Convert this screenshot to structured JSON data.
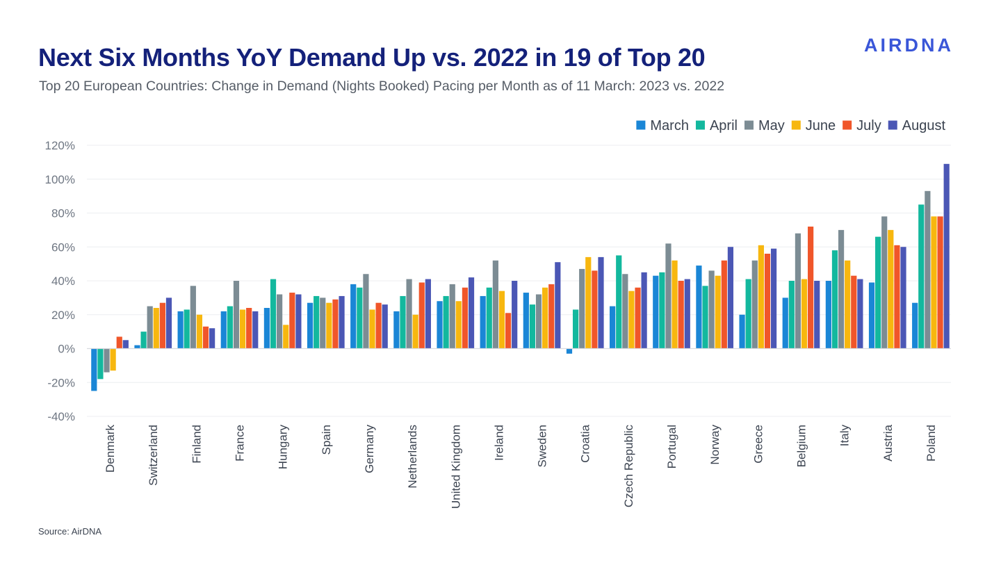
{
  "header": {
    "title": "Next Six Months YoY Demand Up vs. 2022 in 19 of Top 20",
    "subtitle": "Top 20 European Countries: Change in Demand (Nights Booked) Pacing per Month as of 11 March: 2023 vs. 2022",
    "logo_text": "AIRDNA"
  },
  "footer": {
    "source": "Source: AirDNA"
  },
  "chart_data": {
    "type": "bar",
    "title": "Top 20 European Countries: Change in Demand (Nights Booked) Pacing per Month as of 11 March: 2023 vs. 2022",
    "xlabel": "",
    "ylabel": "",
    "ylim": [
      -40,
      120
    ],
    "yticks": [
      -40,
      -20,
      0,
      20,
      40,
      60,
      80,
      100,
      120
    ],
    "ytick_labels": [
      "-40%",
      "-20%",
      "0%",
      "20%",
      "40%",
      "60%",
      "80%",
      "100%",
      "120%"
    ],
    "grid": true,
    "legend_position": "top-right",
    "categories": [
      "Denmark",
      "Switzerland",
      "Finland",
      "France",
      "Hungary",
      "Spain",
      "Germany",
      "Netherlands",
      "United Kingdom",
      "Ireland",
      "Sweden",
      "Croatia",
      "Czech Republic",
      "Portugal",
      "Norway",
      "Greece",
      "Belgium",
      "Italy",
      "Austria",
      "Poland"
    ],
    "series": [
      {
        "name": "March",
        "color": "#1a86d6",
        "values": [
          -25,
          2,
          22,
          22,
          24,
          27,
          38,
          22,
          28,
          31,
          33,
          -3,
          25,
          43,
          49,
          20,
          30,
          40,
          39,
          27
        ]
      },
      {
        "name": "April",
        "color": "#13b89e",
        "values": [
          -18,
          10,
          23,
          25,
          41,
          31,
          36,
          31,
          31,
          36,
          26,
          23,
          55,
          45,
          37,
          41,
          40,
          58,
          66,
          85
        ]
      },
      {
        "name": "May",
        "color": "#7c8c94",
        "values": [
          -14,
          25,
          37,
          40,
          32,
          30,
          44,
          41,
          38,
          52,
          32,
          47,
          44,
          62,
          46,
          52,
          68,
          70,
          78,
          93
        ]
      },
      {
        "name": "June",
        "color": "#f7b70f",
        "values": [
          -13,
          24,
          20,
          23,
          14,
          27,
          23,
          20,
          28,
          34,
          36,
          54,
          34,
          52,
          43,
          61,
          41,
          52,
          70,
          78
        ]
      },
      {
        "name": "July",
        "color": "#f0562a",
        "values": [
          7,
          27,
          13,
          24,
          33,
          29,
          27,
          39,
          36,
          21,
          38,
          46,
          36,
          40,
          52,
          56,
          72,
          43,
          61,
          78
        ]
      },
      {
        "name": "August",
        "color": "#4b57b5",
        "values": [
          5,
          30,
          12,
          22,
          32,
          31,
          26,
          41,
          42,
          40,
          51,
          54,
          45,
          41,
          60,
          59,
          40,
          41,
          60,
          109
        ]
      }
    ]
  }
}
